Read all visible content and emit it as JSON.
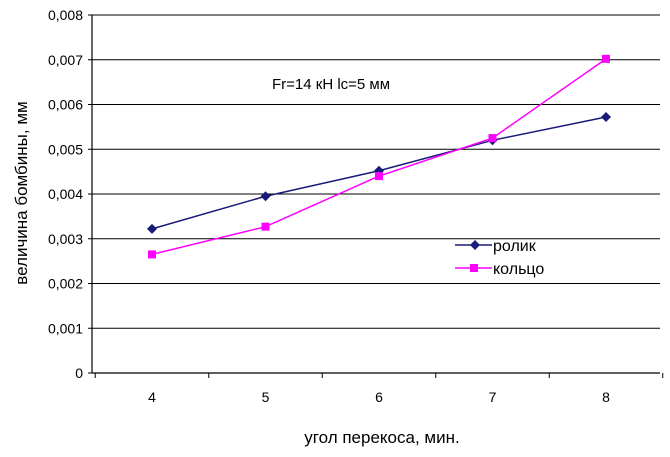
{
  "chart_data": {
    "type": "line",
    "x": [
      4,
      5,
      6,
      7,
      8
    ],
    "series": [
      {
        "name": "ролик",
        "values": [
          0.00322,
          0.00395,
          0.00452,
          0.0052,
          0.00572
        ],
        "color": "#1a1a7a",
        "marker": "diamond"
      },
      {
        "name": "кольцо",
        "values": [
          0.00265,
          0.00327,
          0.0044,
          0.00525,
          0.00702
        ],
        "color": "#ff00ff",
        "marker": "square"
      }
    ],
    "ylim": [
      0,
      0.008
    ],
    "yticks": [
      "0",
      "0,001",
      "0,002",
      "0,003",
      "0,004",
      "0,005",
      "0,006",
      "0,007",
      "0,008"
    ],
    "xticks": [
      "4",
      "5",
      "6",
      "7",
      "8"
    ],
    "xlabel": "угол перекоса, мин.",
    "ylabel": "величина бомбины, мм",
    "annotation": "Fr=14 кН  lc=5 мм",
    "grid": true,
    "legend_position": "right"
  }
}
